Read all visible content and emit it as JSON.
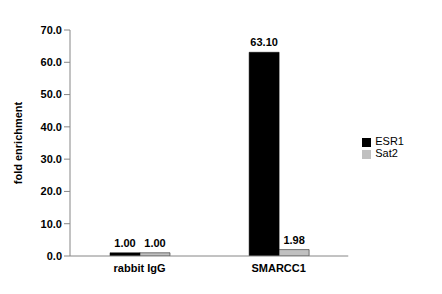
{
  "chart_data": {
    "type": "bar",
    "y_label": "fold enrichment",
    "categories": [
      "rabbit IgG",
      "SMARCC1"
    ],
    "series": [
      {
        "name": "ESR1",
        "color": "#000000",
        "values": [
          1.0,
          63.1
        ],
        "value_labels": [
          "1.00",
          "63.10"
        ]
      },
      {
        "name": "Sat2",
        "color": "#c0c0c0",
        "values": [
          1.0,
          1.98
        ],
        "value_labels": [
          "1.00",
          "1.98"
        ]
      }
    ],
    "ylim": [
      0,
      70
    ],
    "yticks": [
      {
        "value": 0,
        "label": "0.0"
      },
      {
        "value": 10,
        "label": "10.0"
      },
      {
        "value": 20,
        "label": "20.0"
      },
      {
        "value": 30,
        "label": "30.0"
      },
      {
        "value": 40,
        "label": "40.0"
      },
      {
        "value": 50,
        "label": "50.0"
      },
      {
        "value": 60,
        "label": "60.0"
      },
      {
        "value": 70,
        "label": "70.0"
      }
    ],
    "grid": false,
    "legend": "right",
    "data_labels": true
  }
}
